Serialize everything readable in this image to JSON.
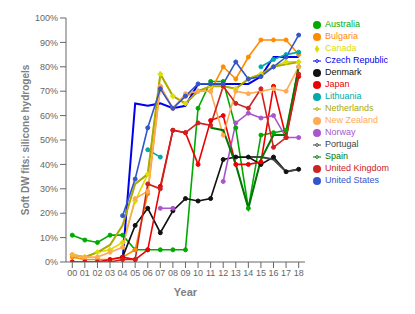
{
  "chart_data": {
    "type": "line",
    "xlabel": "Year",
    "ylabel": "Soft DW fits: silicone hydrogels",
    "x": [
      0,
      1,
      2,
      3,
      4,
      5,
      6,
      7,
      8,
      9,
      10,
      11,
      12,
      13,
      14,
      15,
      16,
      17,
      18
    ],
    "xlim": [
      -0.5,
      18.5
    ],
    "xticks": [
      {
        "value": 0,
        "label": "00"
      },
      {
        "value": 1,
        "label": "01"
      },
      {
        "value": 2,
        "label": "02"
      },
      {
        "value": 3,
        "label": "03"
      },
      {
        "value": 4,
        "label": "04"
      },
      {
        "value": 5,
        "label": "05"
      },
      {
        "value": 6,
        "label": "06"
      },
      {
        "value": 7,
        "label": "07"
      },
      {
        "value": 8,
        "label": "08"
      },
      {
        "value": 9,
        "label": "09"
      },
      10,
      11,
      12,
      13,
      14,
      15,
      16,
      17,
      18
    ],
    "ylim": [
      0,
      100
    ],
    "yticks": [
      {
        "value": 0,
        "label": "0%"
      },
      {
        "value": 10,
        "label": "10%"
      },
      {
        "value": 20,
        "label": "20%"
      },
      {
        "value": 30,
        "label": "30%"
      },
      {
        "value": 40,
        "label": "40%"
      },
      {
        "value": 50,
        "label": "50%"
      },
      {
        "value": 60,
        "label": "60%"
      },
      {
        "value": 70,
        "label": "70%"
      },
      {
        "value": 80,
        "label": "80%"
      },
      {
        "value": 90,
        "label": "90%"
      },
      {
        "value": 100,
        "label": "100%"
      }
    ],
    "grid": false,
    "legend": "right",
    "series": [
      {
        "name": "Australia",
        "color": "#00AA00",
        "marker": "circle",
        "values": [
          11,
          9,
          8,
          11,
          11,
          5,
          5,
          5,
          5,
          5,
          63,
          74,
          74,
          55,
          22,
          52,
          53,
          54,
          80
        ]
      },
      {
        "name": "Bulgaria",
        "color": "#FF8C00",
        "marker": "circle",
        "values": [
          2,
          1,
          1,
          1,
          2,
          5,
          28,
          72,
          63,
          68,
          70,
          70,
          80,
          75,
          84,
          91,
          91,
          91,
          85
        ]
      },
      {
        "name": "Canada",
        "color": "#DDDD00",
        "marker": "diamond",
        "values": [
          3,
          2,
          4,
          5,
          8,
          25,
          36,
          77,
          68,
          65,
          70,
          72,
          72,
          71,
          75,
          77,
          80,
          82,
          82
        ]
      },
      {
        "name": "Czech Republic",
        "color": "#0000EE",
        "marker": "none",
        "values": [
          null,
          null,
          null,
          null,
          1,
          65,
          64,
          65,
          63,
          64,
          73,
          73,
          73,
          73,
          73,
          76,
          84,
          84,
          84
        ]
      },
      {
        "name": "Denmark",
        "color": "#111111",
        "marker": "circle",
        "values": [
          null,
          null,
          null,
          null,
          2,
          15,
          22,
          12,
          21,
          26,
          25,
          26,
          42,
          43,
          43,
          40,
          43,
          37,
          38
        ]
      },
      {
        "name": "Japan",
        "color": "#EE0000",
        "marker": "circle",
        "values": [
          0,
          0,
          0,
          1,
          2,
          1,
          5,
          31,
          54,
          53,
          40,
          58,
          60,
          40,
          40,
          41,
          72,
          51,
          76
        ]
      },
      {
        "name": "Lithuania",
        "color": "#00AAAA",
        "marker": "circle",
        "values": [
          null,
          null,
          null,
          null,
          null,
          null,
          46,
          43,
          null,
          null,
          null,
          null,
          null,
          null,
          null,
          80,
          83,
          85,
          86
        ]
      },
      {
        "name": "Netherlands",
        "color": "#AAAA00",
        "marker": "none",
        "values": [
          3,
          2,
          4,
          7,
          15,
          32,
          36,
          77,
          68,
          65,
          70,
          72,
          72,
          71,
          75,
          77,
          80,
          81,
          82
        ]
      },
      {
        "name": "New Zealand",
        "color": "#FFAA55",
        "marker": "circle",
        "values": [
          3,
          2,
          2,
          4,
          6,
          26,
          29,
          72,
          63,
          69,
          70,
          70,
          52,
          70,
          69,
          70,
          71,
          70,
          80
        ]
      },
      {
        "name": "Norway",
        "color": "#AA55CC",
        "marker": "circle",
        "values": [
          null,
          null,
          null,
          null,
          null,
          null,
          null,
          22,
          22,
          null,
          null,
          null,
          33,
          57,
          61,
          59,
          60,
          51,
          51
        ]
      },
      {
        "name": "Portugal",
        "color": "#444444",
        "marker": "none",
        "values": [
          null,
          null,
          null,
          null,
          null,
          null,
          null,
          null,
          null,
          null,
          null,
          null,
          null,
          null,
          43,
          43,
          42,
          37,
          38
        ]
      },
      {
        "name": "Spain",
        "color": "#007700",
        "marker": "none",
        "values": [
          null,
          null,
          null,
          null,
          null,
          null,
          null,
          null,
          null,
          null,
          null,
          55,
          54,
          40,
          22,
          42,
          52,
          52,
          80
        ]
      },
      {
        "name": "United Kingdom",
        "color": "#CC2222",
        "marker": "circle",
        "values": [
          0,
          0,
          0,
          0,
          1,
          1,
          32,
          30,
          54,
          53,
          57,
          56,
          72,
          65,
          63,
          71,
          47,
          51,
          77
        ]
      },
      {
        "name": "United States",
        "color": "#3355CC",
        "marker": "circle",
        "values": [
          null,
          null,
          null,
          null,
          19,
          34,
          55,
          71,
          63,
          68,
          73,
          73,
          73,
          82,
          75,
          76,
          80,
          84,
          93
        ]
      }
    ]
  }
}
